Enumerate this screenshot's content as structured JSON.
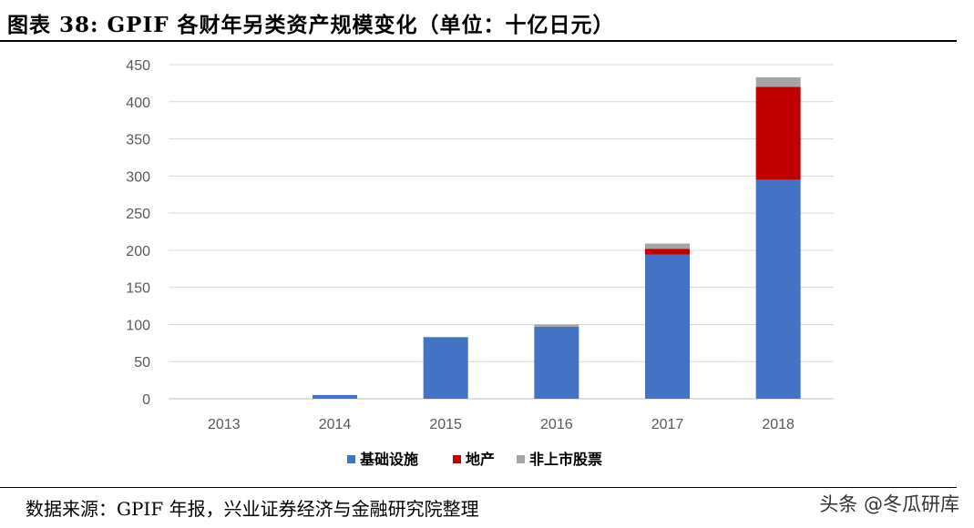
{
  "figure": {
    "title": "图表 38: GPIF 各财年另类资产规模变化（单位：十亿日元）",
    "source": "数据来源：GPIF 年报，兴业证券经济与金融研究院整理",
    "watermark": "头条 @冬瓜研库"
  },
  "chart_data": {
    "type": "bar",
    "stacked": true,
    "categories": [
      "2013",
      "2014",
      "2015",
      "2016",
      "2017",
      "2018"
    ],
    "series": [
      {
        "name": "基础设施",
        "color": "#4472C4",
        "values": [
          0,
          5,
          83,
          97,
          194,
          295
        ]
      },
      {
        "name": "地产",
        "color": "#C00000",
        "values": [
          0,
          0,
          0,
          0,
          8,
          125
        ]
      },
      {
        "name": "非上市股票",
        "color": "#A5A5A5",
        "values": [
          0,
          0,
          0,
          3,
          7,
          13
        ]
      }
    ],
    "ylim": [
      0,
      450
    ],
    "yticks": [
      0,
      50,
      100,
      150,
      200,
      250,
      300,
      350,
      400,
      450
    ],
    "grid": true,
    "legend_position": "bottom"
  }
}
